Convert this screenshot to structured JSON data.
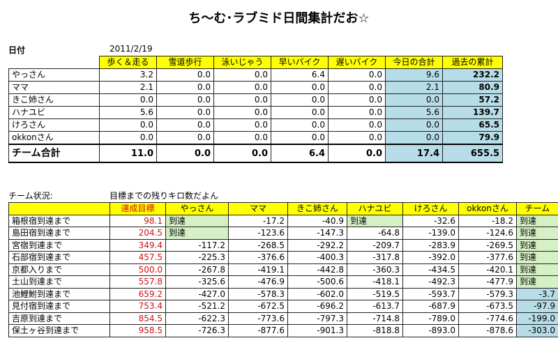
{
  "title": "ち〜む･ラブミド日間集計だお☆",
  "date_label": "日付",
  "date_value": "2011/2/19",
  "daily": {
    "headers": [
      "歩く＆走る",
      "雪道歩行",
      "泳いじゃう",
      "早いバイク",
      "遅いバイク",
      "今日の合計",
      "過去の累計"
    ],
    "rows": [
      {
        "name": "やっさん",
        "values": [
          "3.2",
          "0.0",
          "0.0",
          "6.4",
          "0.0",
          "9.6",
          "232.2"
        ]
      },
      {
        "name": "ママ",
        "values": [
          "2.1",
          "0.0",
          "0.0",
          "0.0",
          "0.0",
          "2.1",
          "80.9"
        ]
      },
      {
        "name": "きこ姉さん",
        "values": [
          "0.0",
          "0.0",
          "0.0",
          "0.0",
          "0.0",
          "0.0",
          "57.2"
        ]
      },
      {
        "name": "ハナユビ",
        "values": [
          "5.6",
          "0.0",
          "0.0",
          "0.0",
          "0.0",
          "5.6",
          "139.7"
        ]
      },
      {
        "name": "けろさん",
        "values": [
          "0.0",
          "0.0",
          "0.0",
          "0.0",
          "0.0",
          "0.0",
          "65.5"
        ]
      },
      {
        "name": "okkonさん",
        "values": [
          "0.0",
          "0.0",
          "0.0",
          "0.0",
          "0.0",
          "0.0",
          "79.9"
        ]
      }
    ],
    "total": {
      "name": "チーム合計",
      "values": [
        "11.0",
        "0.0",
        "0.0",
        "6.4",
        "0.0",
        "17.4",
        "655.5"
      ]
    }
  },
  "status_label": "チーム状況:",
  "status_sub": "目標までの残りキロ数だよん",
  "status": {
    "headers": [
      "達成目標",
      "やっさん",
      "ママ",
      "きこ姉さん",
      "ハナユビ",
      "けろさん",
      "okkonさん",
      "チーム"
    ],
    "rows": [
      {
        "name": "箱根宿到達まで",
        "goal": "98.1",
        "values": [
          "到達",
          "-17.2",
          "-40.9",
          "到達",
          "-32.6",
          "-18.2",
          "到達"
        ]
      },
      {
        "name": "島田宿到達まで",
        "goal": "204.5",
        "values": [
          "到達",
          "-123.6",
          "-147.3",
          "-64.8",
          "-139.0",
          "-124.6",
          "到達"
        ]
      },
      {
        "name": "宮宿到達まで",
        "goal": "349.4",
        "values": [
          "-117.2",
          "-268.5",
          "-292.2",
          "-209.7",
          "-283.9",
          "-269.5",
          "到達"
        ]
      },
      {
        "name": "石部宿到達まで",
        "goal": "457.5",
        "values": [
          "-225.3",
          "-376.6",
          "-400.3",
          "-317.8",
          "-392.0",
          "-377.6",
          "到達"
        ]
      },
      {
        "name": "京都入りまで",
        "goal": "500.0",
        "values": [
          "-267.8",
          "-419.1",
          "-442.8",
          "-360.3",
          "-434.5",
          "-420.1",
          "到達"
        ]
      },
      {
        "name": "土山到達まで",
        "goal": "557.8",
        "values": [
          "-325.6",
          "-476.9",
          "-500.6",
          "-418.1",
          "-492.3",
          "-477.9",
          "到達"
        ]
      },
      {
        "name": "池鯉鮒到達まで",
        "goal": "659.2",
        "values": [
          "-427.0",
          "-578.3",
          "-602.0",
          "-519.5",
          "-593.7",
          "-579.3",
          "-3.7"
        ]
      },
      {
        "name": "見付宿到達まで",
        "goal": "753.4",
        "values": [
          "-521.2",
          "-672.5",
          "-696.2",
          "-613.7",
          "-687.9",
          "-673.5",
          "-97.9"
        ]
      },
      {
        "name": "吉原到達まで",
        "goal": "854.5",
        "values": [
          "-622.3",
          "-773.6",
          "-797.3",
          "-714.8",
          "-789.0",
          "-774.6",
          "-199.0"
        ]
      },
      {
        "name": "保土ヶ谷到達まで",
        "goal": "958.5",
        "values": [
          "-726.3",
          "-877.6",
          "-901.3",
          "-818.8",
          "-893.0",
          "-878.6",
          "-303.0"
        ]
      }
    ]
  },
  "colors": {
    "header_yellow": "#ffff00",
    "cell_blue": "#b7dde8",
    "cell_green": "#d6f0c6",
    "goal_red": "#d11010"
  }
}
